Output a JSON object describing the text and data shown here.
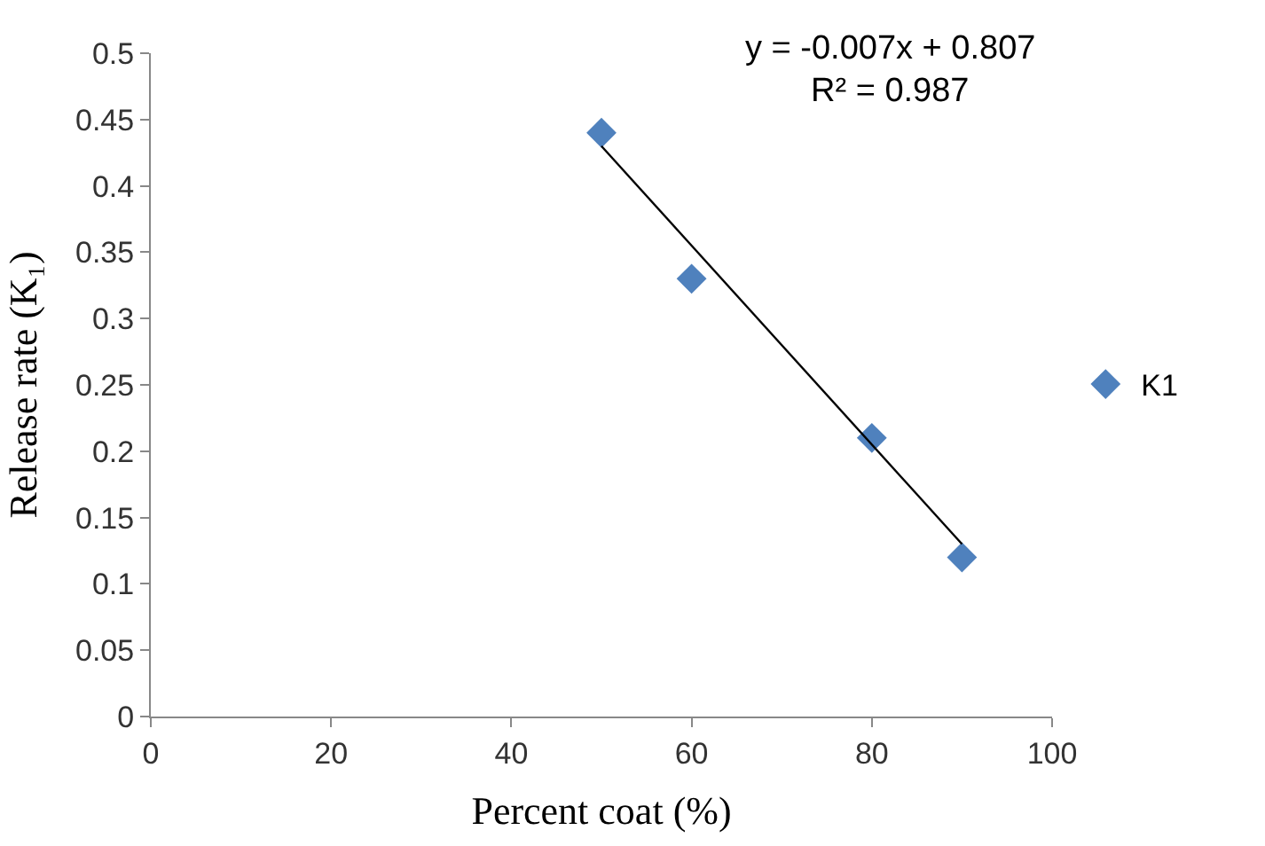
{
  "chart_data": {
    "type": "scatter",
    "xlabel": "Percent coat (%)",
    "ylabel": "Release rate (K₁)",
    "series": [
      {
        "name": "K1",
        "color": "#4f81bd",
        "marker": "diamond",
        "x": [
          50,
          60,
          80,
          90
        ],
        "values": [
          0.44,
          0.33,
          0.21,
          0.12
        ]
      },
      {
        "color": "#000000",
        "type": "line",
        "marker": "none",
        "x": [
          50,
          90
        ],
        "values": [
          0.43,
          0.13
        ]
      }
    ],
    "annotations": [
      "y = -0.007x + 0.807",
      "R² = 0.987"
    ],
    "xlim": [
      0,
      100
    ],
    "xticks": [
      0,
      20,
      40,
      60,
      80,
      100
    ],
    "ylim": [
      0,
      0.5
    ],
    "yticks": [
      0,
      0.05,
      0.1,
      0.15,
      0.2,
      0.25,
      0.3,
      0.35,
      0.4,
      0.45,
      0.5
    ],
    "legend": "right"
  }
}
